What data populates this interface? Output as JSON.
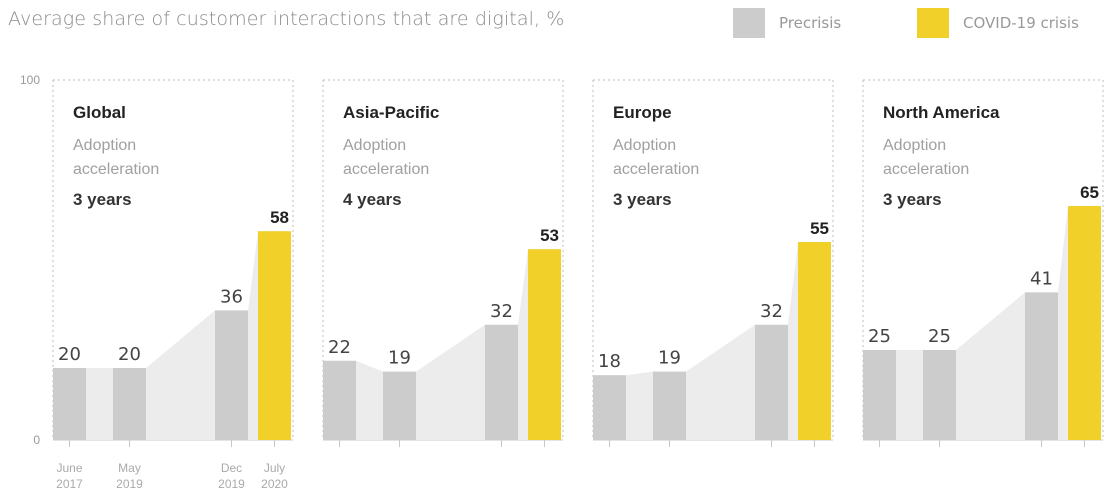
{
  "title": "Average share of customer interactions that are digital, %",
  "legend": [
    {
      "label": "Precrisis",
      "color": "#cccccc"
    },
    {
      "label": "COVID-19 crisis",
      "color": "#f2d02a"
    }
  ],
  "chart_data": {
    "type": "bar",
    "ylim": [
      0,
      100
    ],
    "yticks": [
      "100",
      "0"
    ],
    "categories": [
      "June 2017",
      "May 2019",
      "Dec 2019",
      "July 2020"
    ],
    "category_lines": [
      [
        "June",
        "2017"
      ],
      [
        "May",
        "2019"
      ],
      [
        "Dec",
        "2019"
      ],
      [
        "July",
        "2020"
      ]
    ],
    "panels": [
      {
        "title": "Global",
        "subtitle": [
          "Adoption",
          "acceleration"
        ],
        "acceleration": "3 years",
        "values": [
          20,
          20,
          36,
          58
        ]
      },
      {
        "title": "Asia-Pacific",
        "subtitle": [
          "Adoption",
          "acceleration"
        ],
        "acceleration": "4 years",
        "values": [
          22,
          19,
          32,
          53
        ]
      },
      {
        "title": "Europe",
        "subtitle": [
          "Adoption",
          "acceleration"
        ],
        "acceleration": "3 years",
        "values": [
          18,
          19,
          32,
          55
        ]
      },
      {
        "title": "North America",
        "subtitle": [
          "Adoption",
          "acceleration"
        ],
        "acceleration": "3 years",
        "values": [
          25,
          25,
          41,
          65
        ]
      }
    ],
    "series": [
      {
        "name": "Precrisis",
        "color": "#cccccc"
      },
      {
        "name": "COVID-19 crisis",
        "color": "#f2d02a"
      }
    ]
  }
}
